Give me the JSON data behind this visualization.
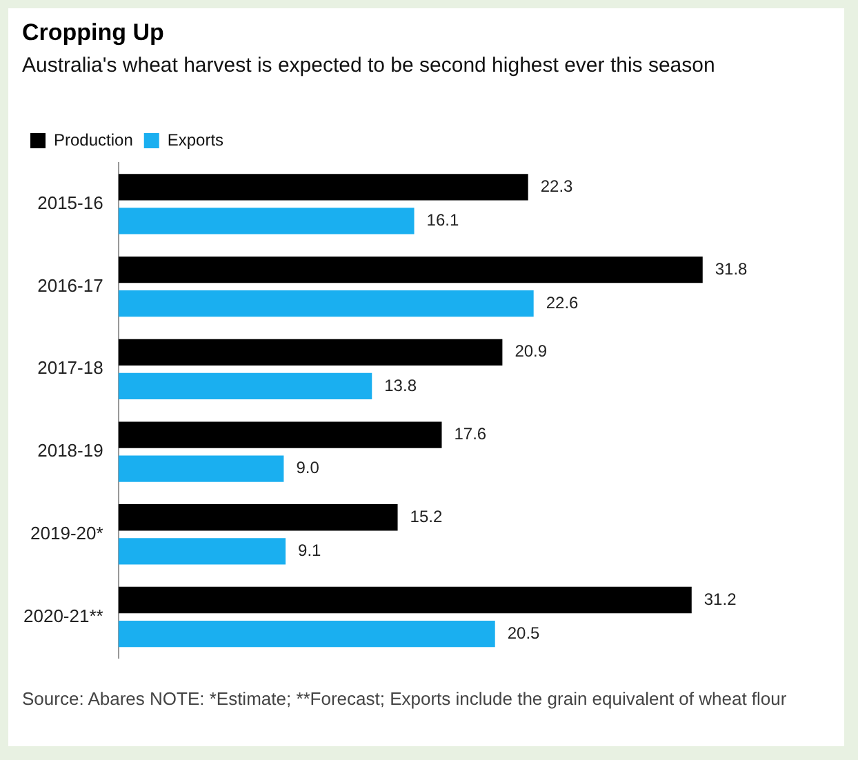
{
  "chart_data": {
    "type": "bar",
    "orientation": "horizontal",
    "title": "Cropping Up",
    "subtitle": "Australia's wheat harvest is expected to be second highest ever this season",
    "categories": [
      "2015-16",
      "2016-17",
      "2017-18",
      "2018-19",
      "2019-20*",
      "2020-21**"
    ],
    "series": [
      {
        "name": "Production",
        "color": "#000000",
        "values": [
          22.3,
          31.8,
          20.9,
          17.6,
          15.2,
          31.2
        ],
        "value_labels": [
          "22.3",
          "31.8",
          "20.9",
          "17.6",
          "15.2",
          "31.2"
        ]
      },
      {
        "name": "Exports",
        "color": "#1aaff0",
        "values": [
          16.1,
          22.6,
          13.8,
          9.0,
          9.1,
          20.5
        ],
        "value_labels": [
          "16.1",
          "22.6",
          "13.8",
          "9.0",
          "9.1",
          "20.5"
        ]
      }
    ],
    "legend": "top left",
    "annotations": [
      "Source: Abares NOTE: *Estimate; **Forecast; Exports include the grain equivalent of wheat flour"
    ]
  }
}
